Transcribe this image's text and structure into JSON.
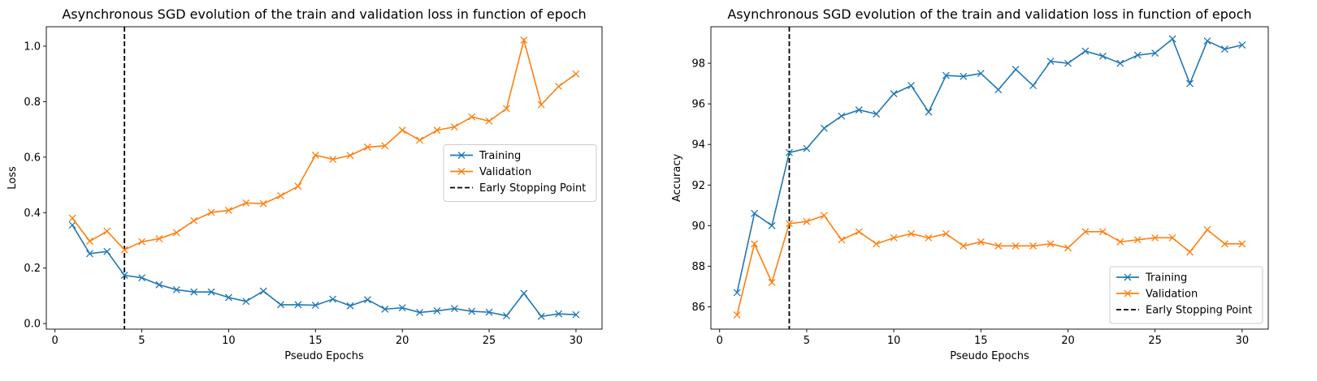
{
  "colors": {
    "training": "#1f77b4",
    "validation": "#ff7f0e",
    "early_stop": "#000000"
  },
  "chart_data": [
    {
      "type": "line",
      "title": "Asynchronous SGD evolution of the train and validation loss in function of epoch",
      "xlabel": "Pseudo Epochs",
      "ylabel": "Loss",
      "xlim": [
        -0.5,
        31.5
      ],
      "ylim": [
        -0.02,
        1.07
      ],
      "xticks": [
        0,
        5,
        10,
        15,
        20,
        25,
        30
      ],
      "yticks": [
        0.0,
        0.2,
        0.4,
        0.6,
        0.8,
        1.0
      ],
      "ytick_labels": [
        "0.0",
        "0.2",
        "0.4",
        "0.6",
        "0.8",
        "1.0"
      ],
      "grid": false,
      "legend_position": "center-right",
      "x": [
        1,
        2,
        3,
        4,
        5,
        6,
        7,
        8,
        9,
        10,
        11,
        12,
        13,
        14,
        15,
        16,
        17,
        18,
        19,
        20,
        21,
        22,
        23,
        24,
        25,
        26,
        27,
        28,
        29,
        30
      ],
      "series": [
        {
          "name": "Training",
          "color": "#1f77b4",
          "marker": "x",
          "values": [
            0.355,
            0.252,
            0.26,
            0.174,
            0.165,
            0.14,
            0.122,
            0.114,
            0.114,
            0.094,
            0.08,
            0.117,
            0.068,
            0.068,
            0.066,
            0.088,
            0.064,
            0.086,
            0.052,
            0.057,
            0.04,
            0.046,
            0.054,
            0.044,
            0.041,
            0.028,
            0.109,
            0.026,
            0.035,
            0.032
          ]
        },
        {
          "name": "Validation",
          "color": "#ff7f0e",
          "marker": "x",
          "values": [
            0.38,
            0.297,
            0.333,
            0.266,
            0.295,
            0.306,
            0.328,
            0.371,
            0.401,
            0.408,
            0.435,
            0.432,
            0.461,
            0.495,
            0.607,
            0.592,
            0.606,
            0.636,
            0.641,
            0.697,
            0.661,
            0.697,
            0.709,
            0.745,
            0.73,
            0.775,
            1.022,
            0.789,
            0.855,
            0.9
          ]
        }
      ],
      "early_stopping": {
        "name": "Early Stopping Point",
        "x": 4
      }
    },
    {
      "type": "line",
      "title": "Asynchronous SGD evolution of the train and validation loss in function of epoch",
      "xlabel": "Pseudo Epochs",
      "ylabel": "Accuracy",
      "xlim": [
        -0.5,
        31.5
      ],
      "ylim": [
        84.9,
        99.8
      ],
      "xticks": [
        0,
        5,
        10,
        15,
        20,
        25,
        30
      ],
      "yticks": [
        86,
        88,
        90,
        92,
        94,
        96,
        98
      ],
      "ytick_labels": [
        "86",
        "88",
        "90",
        "92",
        "94",
        "96",
        "98"
      ],
      "grid": false,
      "legend_position": "lower-right",
      "x": [
        1,
        2,
        3,
        4,
        5,
        6,
        7,
        8,
        9,
        10,
        11,
        12,
        13,
        14,
        15,
        16,
        17,
        18,
        19,
        20,
        21,
        22,
        23,
        24,
        25,
        26,
        27,
        28,
        29,
        30
      ],
      "series": [
        {
          "name": "Training",
          "color": "#1f77b4",
          "marker": "x",
          "values": [
            86.7,
            90.6,
            90.0,
            93.6,
            93.8,
            94.8,
            95.4,
            95.7,
            95.5,
            96.5,
            96.9,
            95.6,
            97.4,
            97.35,
            97.5,
            96.7,
            97.7,
            96.9,
            98.1,
            98.0,
            98.6,
            98.35,
            98.0,
            98.4,
            98.5,
            99.2,
            97.0,
            99.1,
            98.7,
            98.9
          ]
        },
        {
          "name": "Validation",
          "color": "#ff7f0e",
          "marker": "x",
          "values": [
            85.6,
            89.1,
            87.2,
            90.1,
            90.2,
            90.5,
            89.3,
            89.7,
            89.1,
            89.4,
            89.6,
            89.4,
            89.6,
            89.0,
            89.2,
            89.0,
            89.0,
            89.0,
            89.1,
            88.9,
            89.7,
            89.7,
            89.2,
            89.3,
            89.4,
            89.4,
            88.7,
            89.8,
            89.1,
            89.1
          ]
        }
      ],
      "early_stopping": {
        "name": "Early Stopping Point",
        "x": 4
      }
    }
  ]
}
